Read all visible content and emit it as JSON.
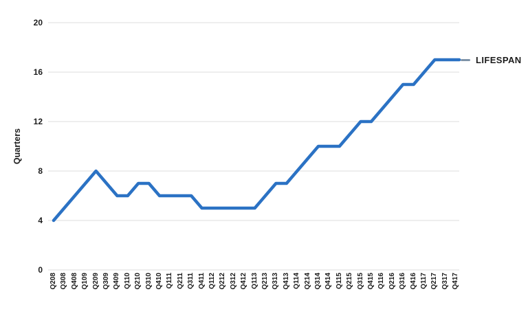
{
  "chart_data": {
    "type": "line",
    "title": "",
    "xlabel": "",
    "ylabel": "Quarters",
    "ylim": [
      0,
      20
    ],
    "yticks": [
      0,
      4,
      8,
      12,
      16,
      20
    ],
    "grid": "horizontal",
    "legend_position": "right of line end",
    "categories": [
      "Q208",
      "Q308",
      "Q408",
      "Q109",
      "Q209",
      "Q309",
      "Q409",
      "Q110",
      "Q210",
      "Q310",
      "Q410",
      "Q111",
      "Q211",
      "Q311",
      "Q411",
      "Q112",
      "Q212",
      "Q312",
      "Q412",
      "Q113",
      "Q213",
      "Q313",
      "Q413",
      "Q114",
      "Q214",
      "Q314",
      "Q414",
      "Q115",
      "Q215",
      "Q315",
      "Q415",
      "Q116",
      "Q216",
      "Q316",
      "Q416",
      "Q117",
      "Q217",
      "Q317",
      "Q417"
    ],
    "series": [
      {
        "name": "LIFESPAN",
        "color": "#2b72c4",
        "values": [
          4,
          5,
          6,
          7,
          8,
          7,
          6,
          6,
          7,
          7,
          6,
          6,
          6,
          6,
          5,
          5,
          5,
          5,
          5,
          5,
          6,
          7,
          7,
          8,
          9,
          10,
          10,
          10,
          11,
          12,
          12,
          13,
          14,
          15,
          15,
          16,
          17,
          17,
          17
        ]
      }
    ]
  },
  "legend": {
    "label": "LIFESPAN"
  },
  "colors": {
    "line": "#2b72c4",
    "grid": "#e9e9e9",
    "text": "#1d1d1d",
    "legend_dash": "#7e93a8",
    "background": "#ffffff"
  }
}
